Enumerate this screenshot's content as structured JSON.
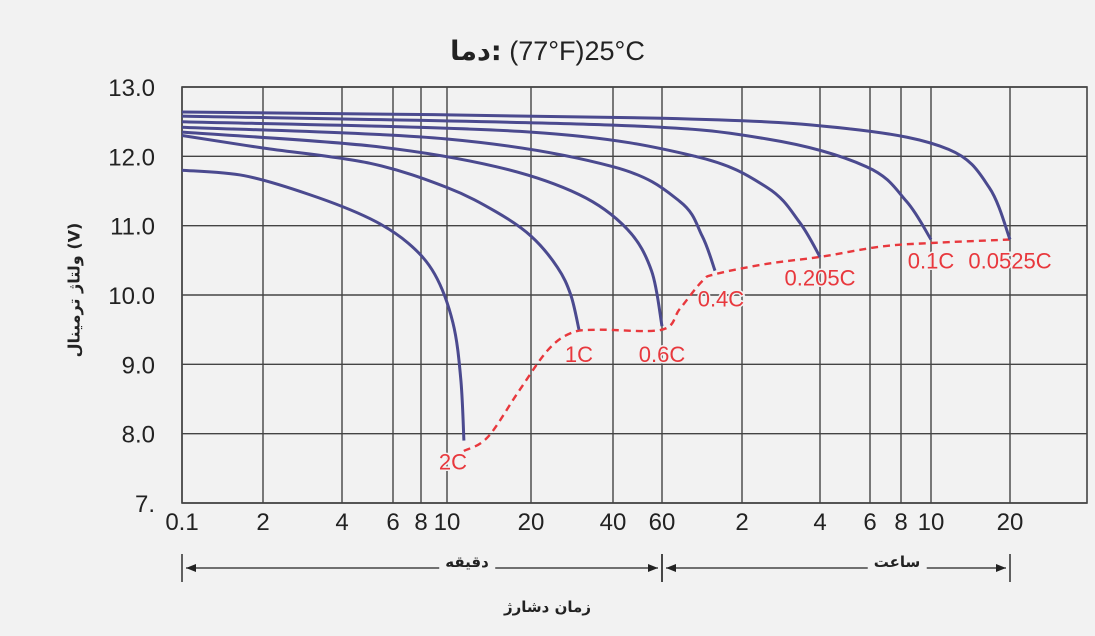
{
  "title": {
    "prefix": "دما:",
    "text": "(77°F)25°C"
  },
  "chart_data": {
    "type": "line",
    "title": "دما: (77°F)25°C",
    "ylabel": "ولتاژ ترمینال (V)",
    "xlabel": "زمان دشارژ",
    "x_scale": "log",
    "x_unit": "minutes",
    "xlim": [
      0.1,
      1500
    ],
    "ylim": [
      7.0,
      13.0
    ],
    "y_ticks": [
      "13.0",
      "12.0",
      "11.0",
      "10.0",
      "9.0",
      "8.0",
      "7."
    ],
    "y_tick_values": [
      13,
      12,
      11,
      10,
      9,
      8,
      7
    ],
    "x_ticks": [
      {
        "label": "0.1",
        "minutes": 0.1
      },
      {
        "label": "2",
        "minutes": 2
      },
      {
        "label": "4",
        "minutes": 4
      },
      {
        "label": "6",
        "minutes": 6
      },
      {
        "label": "8",
        "minutes": 8
      },
      {
        "label": "10",
        "minutes": 10
      },
      {
        "label": "20",
        "minutes": 20
      },
      {
        "label": "40",
        "minutes": 40
      },
      {
        "label": "60",
        "minutes": 60
      },
      {
        "label": "2",
        "minutes": 120
      },
      {
        "label": "4",
        "minutes": 240
      },
      {
        "label": "6",
        "minutes": 360
      },
      {
        "label": "8",
        "minutes": 480
      },
      {
        "label": "10",
        "minutes": 600
      },
      {
        "label": "20",
        "minutes": 1200
      }
    ],
    "grid": true,
    "bands": [
      {
        "label": "دقیقه",
        "from": 0.1,
        "to": 60
      },
      {
        "label": "ساعت",
        "from": 60,
        "to": 1200
      }
    ],
    "series": [
      {
        "name": "2C",
        "color": "#4b4a8f",
        "points": [
          [
            0.1,
            11.8
          ],
          [
            1,
            11.72
          ],
          [
            3,
            11.45
          ],
          [
            5,
            11.1
          ],
          [
            7,
            10.75
          ],
          [
            9,
            10.3
          ],
          [
            10.5,
            9.6
          ],
          [
            11.2,
            8.8
          ],
          [
            11.5,
            7.9
          ]
        ]
      },
      {
        "name": "1C",
        "color": "#4b4a8f",
        "points": [
          [
            0.1,
            12.3
          ],
          [
            2,
            12.12
          ],
          [
            5,
            11.9
          ],
          [
            10,
            11.55
          ],
          [
            15,
            11.2
          ],
          [
            20,
            10.85
          ],
          [
            25,
            10.4
          ],
          [
            28,
            10.0
          ],
          [
            30,
            9.5
          ]
        ]
      },
      {
        "name": "0.6C",
        "color": "#4b4a8f",
        "points": [
          [
            0.1,
            12.35
          ],
          [
            5,
            12.15
          ],
          [
            15,
            11.85
          ],
          [
            30,
            11.45
          ],
          [
            45,
            10.95
          ],
          [
            55,
            10.35
          ],
          [
            60,
            9.55
          ]
        ]
      },
      {
        "name": "0.4C",
        "color": "#4b4a8f",
        "points": [
          [
            0.1,
            12.42
          ],
          [
            10,
            12.25
          ],
          [
            40,
            11.85
          ],
          [
            70,
            11.35
          ],
          [
            85,
            10.85
          ],
          [
            95,
            10.35
          ]
        ]
      },
      {
        "name": "0.205C",
        "color": "#4b4a8f",
        "points": [
          [
            0.1,
            12.5
          ],
          [
            20,
            12.35
          ],
          [
            80,
            12.0
          ],
          [
            150,
            11.55
          ],
          [
            200,
            11.05
          ],
          [
            240,
            10.55
          ]
        ]
      },
      {
        "name": "0.1C",
        "color": "#4b4a8f",
        "points": [
          [
            0.1,
            12.58
          ],
          [
            40,
            12.45
          ],
          [
            150,
            12.25
          ],
          [
            350,
            11.85
          ],
          [
            500,
            11.35
          ],
          [
            600,
            10.8
          ]
        ]
      },
      {
        "name": "0.0525C",
        "color": "#4b4a8f",
        "points": [
          [
            0.1,
            12.64
          ],
          [
            60,
            12.55
          ],
          [
            300,
            12.4
          ],
          [
            700,
            12.1
          ],
          [
            1000,
            11.55
          ],
          [
            1200,
            10.8
          ]
        ]
      }
    ],
    "endpoint_curve": {
      "color": "#e8383d",
      "style": "dashed",
      "points": [
        [
          11.5,
          7.75
        ],
        [
          14,
          7.95
        ],
        [
          18,
          8.6
        ],
        [
          23,
          9.2
        ],
        [
          28,
          9.45
        ],
        [
          35,
          9.5
        ],
        [
          60,
          9.5
        ],
        [
          70,
          9.8
        ],
        [
          85,
          10.2
        ],
        [
          95,
          10.3
        ],
        [
          150,
          10.45
        ],
        [
          240,
          10.55
        ],
        [
          400,
          10.7
        ],
        [
          600,
          10.75
        ],
        [
          1200,
          10.8
        ]
      ]
    },
    "endpoint_labels": [
      {
        "text": "2C",
        "x": 10.5,
        "y": 7.6
      },
      {
        "text": "1C",
        "x": 30,
        "y": 9.15
      },
      {
        "text": "0.6C",
        "x": 60,
        "y": 9.15
      },
      {
        "text": "0.4C",
        "x": 100,
        "y": 9.95
      },
      {
        "text": "0.205C",
        "x": 240,
        "y": 10.25
      },
      {
        "text": "0.1C",
        "x": 600,
        "y": 10.5
      },
      {
        "text": "0.0525C",
        "x": 1200,
        "y": 10.5
      }
    ],
    "colors": {
      "curve": "#4b4a8f",
      "endpoint": "#e8383d",
      "grid": "#444444",
      "background": "#f2f2f2"
    }
  }
}
